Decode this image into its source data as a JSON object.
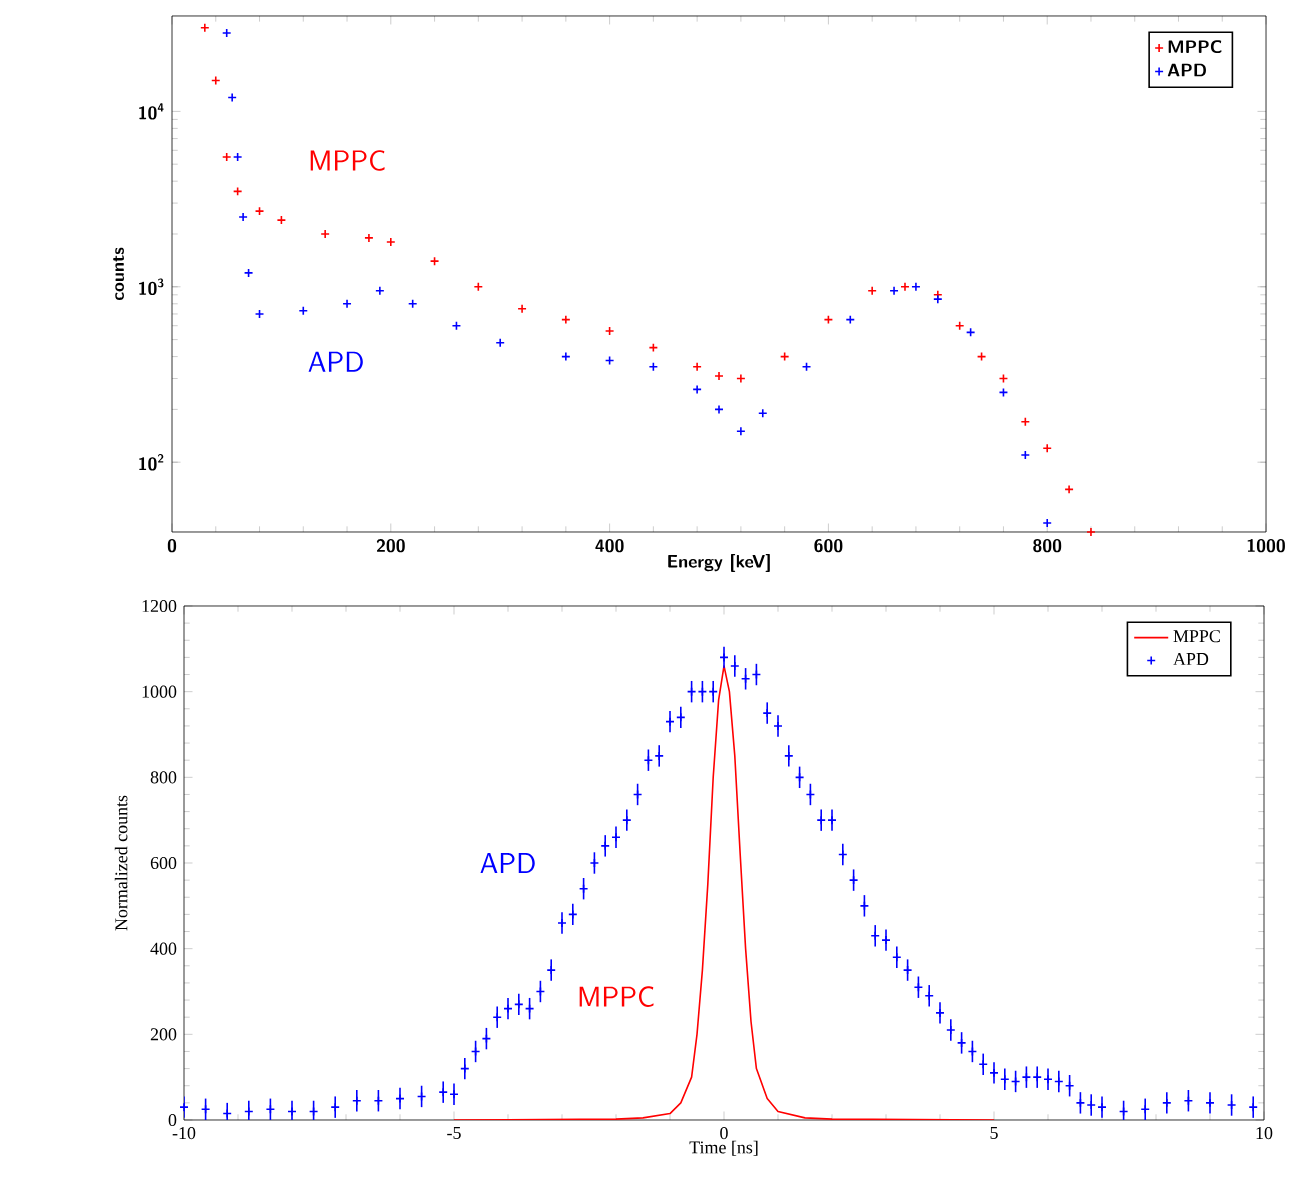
{
  "chart_data": [
    {
      "type": "scatter",
      "xlabel": "Energy [keV]",
      "ylabel": "counts",
      "log": "y",
      "marker": "cross",
      "legend": "top right",
      "xlim": [
        0,
        1000
      ],
      "ylim": [
        40,
        35000
      ],
      "xticks": [
        0,
        200,
        400,
        600,
        800,
        1000
      ],
      "yticks": [
        {
          "value": 100,
          "label": "10$^{2}$"
        },
        {
          "value": 1000,
          "label": "10$^{3}$"
        },
        {
          "value": 10000,
          "label": "10$^{4}$"
        }
      ],
      "series": [
        {
          "name": "MPPC",
          "color": "#ff0000",
          "x": [
            30,
            40,
            50,
            60,
            80,
            100,
            140,
            180,
            200,
            240,
            280,
            320,
            360,
            400,
            440,
            480,
            500,
            520,
            560,
            600,
            640,
            670,
            700,
            720,
            740,
            760,
            780,
            800,
            820,
            840
          ],
          "values": [
            30000,
            15000,
            5500,
            3500,
            2700,
            2400,
            2000,
            1900,
            1800,
            1400,
            1000,
            750,
            650,
            560,
            450,
            350,
            310,
            300,
            400,
            650,
            950,
            1000,
            900,
            600,
            400,
            300,
            170,
            120,
            70,
            40
          ]
        },
        {
          "name": "APD",
          "color": "#0000ff",
          "x": [
            50,
            55,
            60,
            65,
            70,
            80,
            120,
            160,
            190,
            220,
            260,
            300,
            360,
            400,
            440,
            480,
            500,
            520,
            540,
            580,
            620,
            660,
            680,
            700,
            730,
            760,
            780,
            800
          ],
          "values": [
            28000,
            12000,
            5500,
            2500,
            1200,
            700,
            730,
            800,
            950,
            800,
            600,
            480,
            400,
            380,
            350,
            260,
            200,
            150,
            190,
            350,
            650,
            950,
            1000,
            850,
            550,
            250,
            110,
            45
          ]
        }
      ],
      "annotations": [
        "MPPC",
        "APD"
      ]
    },
    {
      "type": "scatter",
      "xlabel": "Time [ns]",
      "ylabel": "Normalized counts",
      "marker": "cross",
      "legend": "top right",
      "xlim": [
        -10,
        10
      ],
      "ylim": [
        0,
        1200
      ],
      "xticks": [
        -10,
        -5,
        0,
        5,
        10
      ],
      "yticks": [
        0,
        200,
        400,
        600,
        800,
        1000,
        1200
      ],
      "series": [
        {
          "name": "MPPC",
          "color": "#ff0000",
          "type": "line",
          "marker": "none",
          "x": [
            -5,
            -2,
            -1.5,
            -1,
            -0.8,
            -0.6,
            -0.5,
            -0.4,
            -0.3,
            -0.2,
            -0.1,
            0,
            0.1,
            0.2,
            0.3,
            0.4,
            0.5,
            0.6,
            0.8,
            1,
            1.5,
            2,
            5
          ],
          "values": [
            0,
            2,
            5,
            15,
            40,
            100,
            200,
            350,
            550,
            800,
            980,
            1060,
            1000,
            850,
            620,
            400,
            230,
            120,
            50,
            20,
            5,
            2,
            0
          ]
        },
        {
          "name": "APD",
          "color": "#0000ff",
          "x": [
            -10,
            -9.6,
            -9.2,
            -8.8,
            -8.4,
            -8,
            -7.6,
            -7.2,
            -6.8,
            -6.4,
            -6,
            -5.6,
            -5.2,
            -5,
            -4.8,
            -4.6,
            -4.4,
            -4.2,
            -4,
            -3.8,
            -3.6,
            -3.4,
            -3.2,
            -3,
            -2.8,
            -2.6,
            -2.4,
            -2.2,
            -2,
            -1.8,
            -1.6,
            -1.4,
            -1.2,
            -1,
            -0.8,
            -0.6,
            -0.4,
            -0.2,
            0,
            0.2,
            0.4,
            0.6,
            0.8,
            1,
            1.2,
            1.4,
            1.6,
            1.8,
            2,
            2.2,
            2.4,
            2.6,
            2.8,
            3,
            3.2,
            3.4,
            3.6,
            3.8,
            4,
            4.2,
            4.4,
            4.6,
            4.8,
            5,
            5.2,
            5.4,
            5.6,
            5.8,
            6,
            6.2,
            6.4,
            6.6,
            6.8,
            7,
            7.4,
            7.8,
            8.2,
            8.6,
            9,
            9.4,
            9.8
          ],
          "values": [
            30,
            25,
            15,
            20,
            25,
            20,
            20,
            30,
            45,
            45,
            50,
            55,
            65,
            60,
            120,
            160,
            190,
            240,
            260,
            270,
            260,
            300,
            350,
            460,
            480,
            540,
            600,
            640,
            660,
            700,
            760,
            840,
            850,
            930,
            940,
            1000,
            1000,
            1000,
            1080,
            1060,
            1030,
            1040,
            950,
            920,
            850,
            800,
            760,
            700,
            700,
            620,
            560,
            500,
            430,
            420,
            380,
            350,
            310,
            290,
            250,
            210,
            180,
            160,
            130,
            110,
            95,
            90,
            100,
            100,
            95,
            90,
            80,
            40,
            35,
            30,
            20,
            25,
            40,
            45,
            40,
            35,
            30
          ],
          "errors": [
            25,
            25,
            25,
            25,
            25,
            25,
            25,
            25,
            25,
            25,
            25,
            25,
            25,
            25,
            25,
            25,
            25,
            25,
            25,
            25,
            25,
            25,
            25,
            25,
            25,
            25,
            25,
            25,
            25,
            25,
            25,
            25,
            25,
            25,
            25,
            25,
            25,
            25,
            25,
            25,
            25,
            25,
            25,
            25,
            25,
            25,
            25,
            25,
            25,
            25,
            25,
            25,
            25,
            25,
            25,
            25,
            25,
            25,
            25,
            25,
            25,
            25,
            25,
            25,
            25,
            25,
            25,
            25,
            25,
            25,
            25,
            25,
            25,
            25,
            25,
            25,
            25,
            25,
            25,
            25,
            25
          ]
        }
      ],
      "annotations": [
        "APD",
        "MPPC"
      ]
    }
  ]
}
